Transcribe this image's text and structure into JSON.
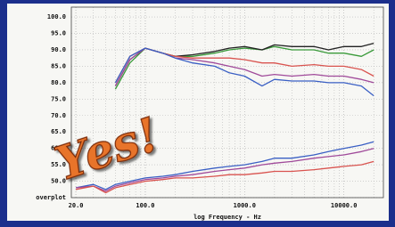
{
  "chart_data": {
    "type": "line",
    "xlabel": "log Frequency - Hz",
    "annotation": "Yes!",
    "xscale": "log",
    "grid": true,
    "xlim": [
      18,
      25000
    ],
    "ylim": [
      45,
      103
    ],
    "xticks": [
      {
        "value": 20,
        "label": "20.0"
      },
      {
        "value": 100,
        "label": "100.0"
      },
      {
        "value": 1000,
        "label": "1000.0"
      },
      {
        "value": 10000,
        "label": "10000.0"
      }
    ],
    "yticks": [
      {
        "value": 45,
        "label": "overplot"
      },
      {
        "value": 50,
        "label": "50.0"
      },
      {
        "value": 55,
        "label": "55.0"
      },
      {
        "value": 60,
        "label": "60.0"
      },
      {
        "value": 65,
        "label": "65.0"
      },
      {
        "value": 70,
        "label": "70.0"
      },
      {
        "value": 75,
        "label": "75.0"
      },
      {
        "value": 80,
        "label": "80.0"
      },
      {
        "value": 85,
        "label": "85.0"
      },
      {
        "value": 90,
        "label": "90.0"
      },
      {
        "value": 95,
        "label": "95.0"
      },
      {
        "value": 100,
        "label": "100.0"
      }
    ],
    "x": [
      20,
      30,
      40,
      50,
      70,
      100,
      150,
      200,
      300,
      500,
      700,
      1000,
      1500,
      2000,
      3000,
      5000,
      7000,
      10000,
      15000,
      20000
    ],
    "series": [
      {
        "color": "#3a9a3a",
        "values": [
          null,
          null,
          null,
          78,
          86,
          90.5,
          89,
          88,
          88,
          89,
          90,
          90.5,
          90,
          91,
          90,
          90,
          89,
          89,
          88,
          90
        ]
      },
      {
        "color": "#222222",
        "values": [
          null,
          null,
          null,
          79,
          87,
          90.5,
          89,
          88,
          88.5,
          89.5,
          90.5,
          91,
          90,
          91.5,
          91,
          91,
          90,
          91,
          91,
          92
        ]
      },
      {
        "color": "#d9534f",
        "values": [
          null,
          null,
          null,
          80,
          88,
          90.5,
          89,
          88,
          87.5,
          87.5,
          87.5,
          87,
          86,
          86,
          85,
          85.5,
          85,
          85,
          84,
          82
        ]
      },
      {
        "color": "#a04a9a",
        "values": [
          null,
          null,
          null,
          79,
          87,
          90.5,
          89,
          87.5,
          87,
          86,
          85,
          84,
          82,
          82.5,
          82,
          82.5,
          82,
          82,
          81,
          80
        ]
      },
      {
        "color": "#3a5fc4",
        "values": [
          null,
          null,
          null,
          80,
          88,
          90.5,
          89,
          87.5,
          86,
          85,
          83,
          82,
          79,
          81,
          80.5,
          80.5,
          80,
          80,
          79,
          76
        ]
      },
      {
        "color": "#3a5fc4",
        "values": [
          48,
          49,
          47.5,
          49,
          50,
          51,
          51.5,
          52,
          53,
          54,
          54.5,
          55,
          56,
          57,
          57,
          58,
          59,
          60,
          61,
          62
        ]
      },
      {
        "color": "#a04a9a",
        "values": [
          48,
          48.5,
          47,
          48.5,
          49.5,
          50.5,
          51,
          51.5,
          52,
          53,
          53.5,
          54,
          55,
          55.5,
          56,
          57,
          57.5,
          58,
          59,
          60
        ]
      },
      {
        "color": "#d9534f",
        "values": [
          47.5,
          48.5,
          46.5,
          48,
          49,
          50,
          50.5,
          51,
          51,
          51.5,
          52,
          52,
          52.5,
          53,
          53,
          53.5,
          54,
          54.5,
          55,
          56
        ]
      }
    ]
  }
}
